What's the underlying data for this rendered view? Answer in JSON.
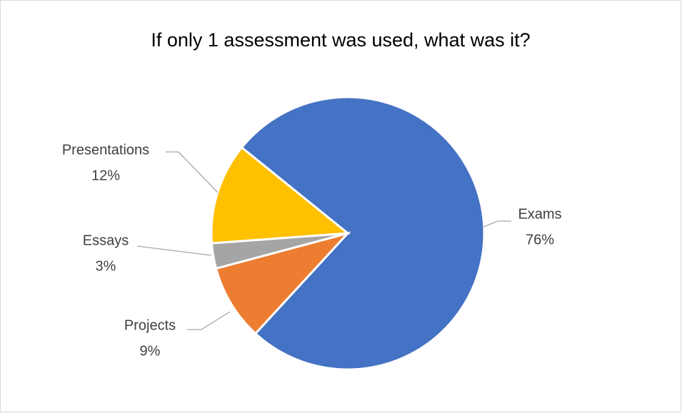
{
  "chart_data": {
    "type": "pie",
    "title": "If only 1 assessment was used, what was it?",
    "categories": [
      "Exams",
      "Projects",
      "Essays",
      "Presentations"
    ],
    "values": [
      76,
      9,
      3,
      12
    ],
    "value_labels": [
      "76%",
      "9%",
      "3%",
      "12%"
    ],
    "colors": [
      "#4472c4",
      "#ed7d31",
      "#a5a5a5",
      "#ffc000"
    ]
  }
}
